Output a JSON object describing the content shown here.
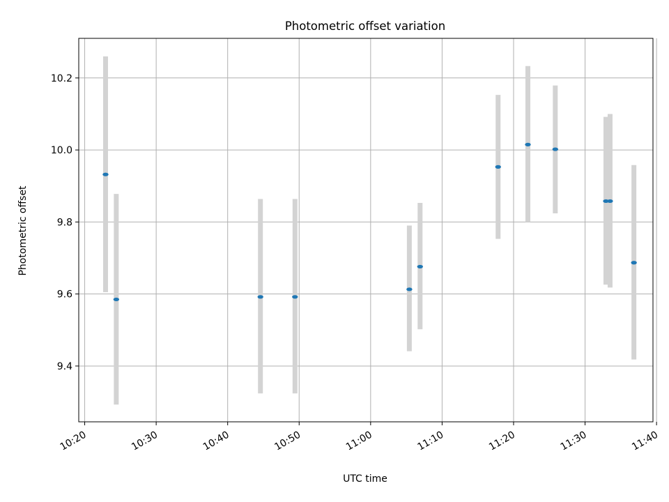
{
  "chart_data": {
    "type": "scatter",
    "title": "Photometric offset variation",
    "xlabel": "UTC time",
    "ylabel": "Photometric offset",
    "grid": true,
    "x_ticks": [
      "10:20",
      "10:30",
      "10:40",
      "10:50",
      "11:00",
      "11:10",
      "11:20",
      "11:30",
      "11:40"
    ],
    "xlim": [
      "10:19:10",
      "11:39:30"
    ],
    "y_ticks": [
      9.4,
      9.6,
      9.8,
      10.0,
      10.2
    ],
    "ylim": [
      9.245,
      10.31
    ],
    "series": [
      {
        "points": [
          {
            "x": "10:22:55",
            "y": 9.932,
            "err_low": 9.605,
            "err_high": 10.26
          },
          {
            "x": "10:24:25",
            "y": 9.585,
            "err_low": 9.293,
            "err_high": 9.878
          },
          {
            "x": "10:44:35",
            "y": 9.592,
            "err_low": 9.324,
            "err_high": 9.864
          },
          {
            "x": "10:49:25",
            "y": 9.592,
            "err_low": 9.324,
            "err_high": 9.864
          },
          {
            "x": "11:05:25",
            "y": 9.613,
            "err_low": 9.441,
            "err_high": 9.79
          },
          {
            "x": "11:06:55",
            "y": 9.676,
            "err_low": 9.502,
            "err_high": 9.853
          },
          {
            "x": "11:17:50",
            "y": 9.953,
            "err_low": 9.753,
            "err_high": 10.153
          },
          {
            "x": "11:22:00",
            "y": 10.015,
            "err_low": 9.8,
            "err_high": 10.233
          },
          {
            "x": "11:25:50",
            "y": 10.002,
            "err_low": 9.824,
            "err_high": 10.179
          },
          {
            "x": "11:32:55",
            "y": 9.858,
            "err_low": 9.626,
            "err_high": 10.092
          },
          {
            "x": "11:33:30",
            "y": 9.858,
            "err_low": 9.618,
            "err_high": 10.1
          },
          {
            "x": "11:36:50",
            "y": 9.687,
            "err_low": 9.418,
            "err_high": 9.958
          }
        ]
      }
    ]
  },
  "colors": {
    "marker": "#1f77b4",
    "errorbar": "#d3d3d3",
    "grid": "#b0b0b0",
    "axes": "#000000"
  }
}
